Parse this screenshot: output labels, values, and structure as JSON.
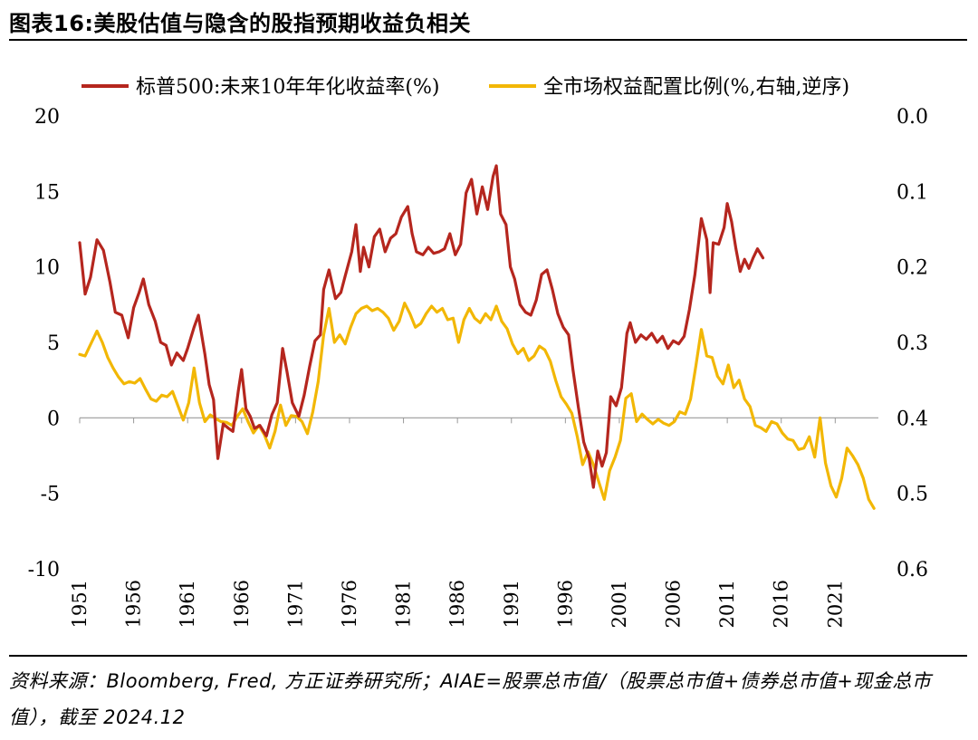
{
  "title": "图表16:美股估值与隐含的股指预期收益负相关",
  "source": "资料来源：Bloomberg, Fred, 方正证券研究所；AIAE=股票总市值/（股票总市值+债券总市值+现金总市值），截至 2024.12",
  "colors": {
    "sp500": "#b5261e",
    "aiae": "#f2b705",
    "axis": "#999999"
  },
  "chart_data": {
    "type": "line",
    "legend_position": "top",
    "grid": false,
    "x_range": [
      1951,
      2025
    ],
    "x_ticks": [
      "1951",
      "1956",
      "1961",
      "1966",
      "1971",
      "1976",
      "1981",
      "1986",
      "1991",
      "1996",
      "2001",
      "2006",
      "2011",
      "2016",
      "2021"
    ],
    "y_left": {
      "ticks": [
        "20",
        "15",
        "10",
        "5",
        "0",
        "-5",
        "-10"
      ],
      "range": [
        -10,
        20
      ]
    },
    "y_right": {
      "ticks": [
        "0.0",
        "0.1",
        "0.2",
        "0.3",
        "0.4",
        "0.5",
        "0.6"
      ],
      "range": [
        0.0,
        0.6
      ],
      "inverted": true
    },
    "series": [
      {
        "name": "标普500:未来10年年化收益率(%)",
        "axis": "left",
        "color": "#b5261e",
        "points": [
          [
            1951.0,
            11.6
          ],
          [
            1951.5,
            8.2
          ],
          [
            1952.0,
            9.3
          ],
          [
            1952.6,
            11.8
          ],
          [
            1953.2,
            11.1
          ],
          [
            1953.8,
            9.0
          ],
          [
            1954.3,
            7.0
          ],
          [
            1954.9,
            6.8
          ],
          [
            1955.5,
            5.3
          ],
          [
            1956.0,
            7.3
          ],
          [
            1956.5,
            8.3
          ],
          [
            1956.9,
            9.2
          ],
          [
            1957.4,
            7.5
          ],
          [
            1958.0,
            6.4
          ],
          [
            1958.5,
            5.0
          ],
          [
            1959.0,
            4.8
          ],
          [
            1959.5,
            3.5
          ],
          [
            1960.0,
            4.3
          ],
          [
            1960.6,
            3.8
          ],
          [
            1961.0,
            4.6
          ],
          [
            1961.6,
            6.0
          ],
          [
            1962.0,
            6.8
          ],
          [
            1962.6,
            4.2
          ],
          [
            1963.0,
            2.2
          ],
          [
            1963.4,
            1.2
          ],
          [
            1963.8,
            -2.7
          ],
          [
            1964.3,
            -0.4
          ],
          [
            1964.8,
            -0.7
          ],
          [
            1965.2,
            -0.9
          ],
          [
            1965.7,
            1.8
          ],
          [
            1966.0,
            3.2
          ],
          [
            1966.4,
            0.6
          ],
          [
            1966.8,
            0.1
          ],
          [
            1967.2,
            -0.7
          ],
          [
            1967.7,
            -0.5
          ],
          [
            1968.3,
            -1.2
          ],
          [
            1968.8,
            0.2
          ],
          [
            1969.3,
            1.0
          ],
          [
            1969.8,
            4.6
          ],
          [
            1970.2,
            3.1
          ],
          [
            1970.7,
            1.0
          ],
          [
            1971.3,
            0.1
          ],
          [
            1971.8,
            1.5
          ],
          [
            1972.3,
            3.4
          ],
          [
            1972.8,
            5.1
          ],
          [
            1973.3,
            5.5
          ],
          [
            1973.6,
            8.5
          ],
          [
            1974.1,
            9.8
          ],
          [
            1974.7,
            7.9
          ],
          [
            1975.2,
            8.3
          ],
          [
            1975.6,
            9.4
          ],
          [
            1976.2,
            11.0
          ],
          [
            1976.6,
            12.8
          ],
          [
            1977.0,
            9.7
          ],
          [
            1977.3,
            11.3
          ],
          [
            1977.8,
            10.0
          ],
          [
            1978.3,
            12.0
          ],
          [
            1978.8,
            12.5
          ],
          [
            1979.3,
            11.0
          ],
          [
            1979.8,
            11.9
          ],
          [
            1980.3,
            12.2
          ],
          [
            1980.8,
            13.3
          ],
          [
            1981.4,
            14.0
          ],
          [
            1981.8,
            12.2
          ],
          [
            1982.2,
            11.0
          ],
          [
            1982.8,
            10.8
          ],
          [
            1983.3,
            11.3
          ],
          [
            1983.8,
            10.9
          ],
          [
            1984.3,
            11.0
          ],
          [
            1984.8,
            11.2
          ],
          [
            1985.3,
            12.2
          ],
          [
            1985.8,
            10.8
          ],
          [
            1986.3,
            11.5
          ],
          [
            1986.8,
            14.9
          ],
          [
            1987.3,
            15.8
          ],
          [
            1987.8,
            13.5
          ],
          [
            1988.3,
            15.3
          ],
          [
            1988.8,
            13.8
          ],
          [
            1989.3,
            16.0
          ],
          [
            1989.6,
            16.7
          ],
          [
            1990.0,
            13.5
          ],
          [
            1990.5,
            12.8
          ],
          [
            1990.9,
            10.0
          ],
          [
            1991.3,
            9.2
          ],
          [
            1991.8,
            7.5
          ],
          [
            1992.3,
            7.0
          ],
          [
            1992.8,
            6.8
          ],
          [
            1993.3,
            7.8
          ],
          [
            1993.8,
            9.5
          ],
          [
            1994.3,
            9.8
          ],
          [
            1994.8,
            8.5
          ],
          [
            1995.3,
            6.9
          ],
          [
            1995.8,
            6.0
          ],
          [
            1996.3,
            5.5
          ],
          [
            1996.7,
            3.2
          ],
          [
            1997.2,
            0.7
          ],
          [
            1997.7,
            -1.6
          ],
          [
            1998.2,
            -2.7
          ],
          [
            1998.6,
            -4.6
          ],
          [
            1999.0,
            -2.2
          ],
          [
            1999.4,
            -3.2
          ],
          [
            1999.8,
            -2.3
          ],
          [
            2000.2,
            1.4
          ],
          [
            2000.7,
            0.8
          ],
          [
            2001.2,
            2.0
          ],
          [
            2001.7,
            5.6
          ],
          [
            2002.0,
            6.3
          ],
          [
            2002.5,
            5.0
          ],
          [
            2003.0,
            5.5
          ],
          [
            2003.5,
            5.2
          ],
          [
            2004.0,
            5.6
          ],
          [
            2004.5,
            5.0
          ],
          [
            2005.0,
            5.4
          ],
          [
            2005.5,
            4.6
          ],
          [
            2006.0,
            5.1
          ],
          [
            2006.5,
            4.9
          ],
          [
            2007.0,
            5.4
          ],
          [
            2007.5,
            7.2
          ],
          [
            2008.0,
            9.5
          ],
          [
            2008.6,
            13.2
          ],
          [
            2009.1,
            11.8
          ],
          [
            2009.4,
            8.3
          ],
          [
            2009.7,
            11.6
          ],
          [
            2010.2,
            11.5
          ],
          [
            2010.7,
            12.6
          ],
          [
            2011.0,
            14.2
          ],
          [
            2011.4,
            13.0
          ],
          [
            2011.8,
            11.2
          ],
          [
            2012.2,
            9.7
          ],
          [
            2012.6,
            10.5
          ],
          [
            2013.0,
            9.9
          ],
          [
            2013.4,
            10.6
          ],
          [
            2013.8,
            11.2
          ],
          [
            2014.3,
            10.6
          ]
        ]
      },
      {
        "name": "全市场权益配置比例(%,右轴,逆序)",
        "axis": "right",
        "color": "#f2b705",
        "points": [
          [
            1951.0,
            0.316
          ],
          [
            1951.5,
            0.318
          ],
          [
            1952.0,
            0.303
          ],
          [
            1952.6,
            0.285
          ],
          [
            1953.1,
            0.3
          ],
          [
            1953.6,
            0.32
          ],
          [
            1954.1,
            0.334
          ],
          [
            1954.6,
            0.346
          ],
          [
            1955.1,
            0.355
          ],
          [
            1955.6,
            0.352
          ],
          [
            1956.1,
            0.354
          ],
          [
            1956.6,
            0.348
          ],
          [
            1957.1,
            0.362
          ],
          [
            1957.6,
            0.375
          ],
          [
            1958.1,
            0.378
          ],
          [
            1958.6,
            0.37
          ],
          [
            1959.1,
            0.372
          ],
          [
            1959.6,
            0.365
          ],
          [
            1960.1,
            0.384
          ],
          [
            1960.6,
            0.403
          ],
          [
            1961.1,
            0.38
          ],
          [
            1961.6,
            0.334
          ],
          [
            1962.1,
            0.38
          ],
          [
            1962.6,
            0.405
          ],
          [
            1963.1,
            0.396
          ],
          [
            1963.6,
            0.401
          ],
          [
            1964.1,
            0.405
          ],
          [
            1964.6,
            0.406
          ],
          [
            1965.1,
            0.41
          ],
          [
            1965.6,
            0.398
          ],
          [
            1966.1,
            0.388
          ],
          [
            1966.6,
            0.405
          ],
          [
            1967.1,
            0.42
          ],
          [
            1967.6,
            0.41
          ],
          [
            1968.1,
            0.422
          ],
          [
            1968.6,
            0.44
          ],
          [
            1969.1,
            0.418
          ],
          [
            1969.6,
            0.383
          ],
          [
            1970.1,
            0.41
          ],
          [
            1970.6,
            0.397
          ],
          [
            1971.1,
            0.398
          ],
          [
            1971.6,
            0.405
          ],
          [
            1972.1,
            0.421
          ],
          [
            1972.6,
            0.392
          ],
          [
            1973.1,
            0.352
          ],
          [
            1973.6,
            0.29
          ],
          [
            1974.1,
            0.255
          ],
          [
            1974.6,
            0.3
          ],
          [
            1975.1,
            0.29
          ],
          [
            1975.6,
            0.302
          ],
          [
            1976.1,
            0.28
          ],
          [
            1976.6,
            0.262
          ],
          [
            1977.1,
            0.255
          ],
          [
            1977.6,
            0.252
          ],
          [
            1978.1,
            0.258
          ],
          [
            1978.6,
            0.255
          ],
          [
            1979.1,
            0.26
          ],
          [
            1979.6,
            0.268
          ],
          [
            1980.1,
            0.284
          ],
          [
            1980.6,
            0.272
          ],
          [
            1981.1,
            0.248
          ],
          [
            1981.6,
            0.262
          ],
          [
            1982.1,
            0.28
          ],
          [
            1982.6,
            0.275
          ],
          [
            1983.1,
            0.262
          ],
          [
            1983.6,
            0.252
          ],
          [
            1984.1,
            0.26
          ],
          [
            1984.6,
            0.255
          ],
          [
            1985.1,
            0.27
          ],
          [
            1985.6,
            0.268
          ],
          [
            1986.1,
            0.3
          ],
          [
            1986.6,
            0.27
          ],
          [
            1987.1,
            0.255
          ],
          [
            1987.6,
            0.268
          ],
          [
            1988.1,
            0.274
          ],
          [
            1988.6,
            0.262
          ],
          [
            1989.1,
            0.27
          ],
          [
            1989.6,
            0.252
          ],
          [
            1990.1,
            0.272
          ],
          [
            1990.6,
            0.282
          ],
          [
            1991.1,
            0.302
          ],
          [
            1991.6,
            0.315
          ],
          [
            1992.1,
            0.308
          ],
          [
            1992.6,
            0.324
          ],
          [
            1993.1,
            0.318
          ],
          [
            1993.6,
            0.305
          ],
          [
            1994.1,
            0.31
          ],
          [
            1994.6,
            0.325
          ],
          [
            1995.1,
            0.35
          ],
          [
            1995.6,
            0.372
          ],
          [
            1996.1,
            0.382
          ],
          [
            1996.6,
            0.394
          ],
          [
            1997.1,
            0.425
          ],
          [
            1997.6,
            0.462
          ],
          [
            1998.1,
            0.445
          ],
          [
            1998.6,
            0.462
          ],
          [
            1999.1,
            0.485
          ],
          [
            1999.6,
            0.508
          ],
          [
            2000.1,
            0.47
          ],
          [
            2000.6,
            0.452
          ],
          [
            2001.1,
            0.43
          ],
          [
            2001.6,
            0.374
          ],
          [
            2002.1,
            0.368
          ],
          [
            2002.6,
            0.405
          ],
          [
            2003.1,
            0.395
          ],
          [
            2003.6,
            0.402
          ],
          [
            2004.1,
            0.408
          ],
          [
            2004.6,
            0.402
          ],
          [
            2005.1,
            0.407
          ],
          [
            2005.6,
            0.41
          ],
          [
            2006.1,
            0.405
          ],
          [
            2006.6,
            0.392
          ],
          [
            2007.1,
            0.395
          ],
          [
            2007.6,
            0.375
          ],
          [
            2008.1,
            0.33
          ],
          [
            2008.6,
            0.283
          ],
          [
            2009.1,
            0.318
          ],
          [
            2009.6,
            0.32
          ],
          [
            2010.1,
            0.345
          ],
          [
            2010.6,
            0.355
          ],
          [
            2011.1,
            0.33
          ],
          [
            2011.6,
            0.36
          ],
          [
            2012.1,
            0.35
          ],
          [
            2012.6,
            0.375
          ],
          [
            2013.1,
            0.385
          ],
          [
            2013.6,
            0.41
          ],
          [
            2014.1,
            0.413
          ],
          [
            2014.6,
            0.418
          ],
          [
            2015.1,
            0.405
          ],
          [
            2015.6,
            0.408
          ],
          [
            2016.1,
            0.42
          ],
          [
            2016.6,
            0.428
          ],
          [
            2017.1,
            0.43
          ],
          [
            2017.6,
            0.442
          ],
          [
            2018.1,
            0.44
          ],
          [
            2018.6,
            0.425
          ],
          [
            2019.1,
            0.452
          ],
          [
            2019.6,
            0.4
          ],
          [
            2020.1,
            0.46
          ],
          [
            2020.6,
            0.49
          ],
          [
            2021.1,
            0.505
          ],
          [
            2021.6,
            0.48
          ],
          [
            2022.1,
            0.44
          ],
          [
            2022.6,
            0.45
          ],
          [
            2023.1,
            0.462
          ],
          [
            2023.6,
            0.48
          ],
          [
            2024.1,
            0.508
          ],
          [
            2024.6,
            0.52
          ]
        ]
      }
    ]
  }
}
